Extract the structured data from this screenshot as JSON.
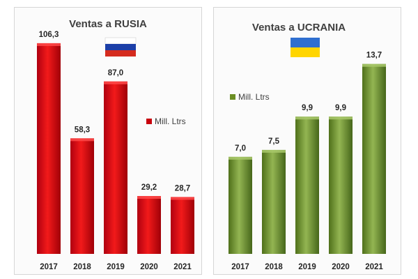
{
  "chart_data": [
    {
      "type": "bar",
      "title": "Ventas a RUSIA",
      "categories": [
        "2017",
        "2018",
        "2019",
        "2020",
        "2021"
      ],
      "series": [
        {
          "name": "Mill. Ltrs",
          "values": [
            106.3,
            58.3,
            87.0,
            29.2,
            28.7
          ]
        }
      ],
      "value_labels": [
        "106,3",
        "58,3",
        "87,0",
        "29,2",
        "28,7"
      ],
      "ylim": [
        0,
        120
      ],
      "grid": false,
      "legend_position": "middle-right",
      "color": "#d4000f",
      "flag": "russia-flag-icon"
    },
    {
      "type": "bar",
      "title": "Ventas a UCRANIA",
      "categories": [
        "2017",
        "2018",
        "2019",
        "2020",
        "2021"
      ],
      "series": [
        {
          "name": "Mill. Ltrs",
          "values": [
            7.0,
            7.5,
            9.9,
            9.9,
            13.7
          ]
        }
      ],
      "value_labels": [
        "7,0",
        "7,5",
        "9,9",
        "9,9",
        "13,7"
      ],
      "ylim": [
        0,
        16
      ],
      "grid": false,
      "legend_position": "top-left",
      "color": "#6b8e23",
      "flag": "ukraine-flag-icon"
    }
  ],
  "colors": {
    "red_light": "#ee2020",
    "red_dark": "#9c0008",
    "green_light": "#8db04a",
    "green_dark": "#4a6a18",
    "russia_flag": [
      "#ffffff",
      "#1c3fa8",
      "#d52b1e"
    ],
    "ukraine_flag": [
      "#2f6fd0",
      "#ffd500"
    ]
  }
}
